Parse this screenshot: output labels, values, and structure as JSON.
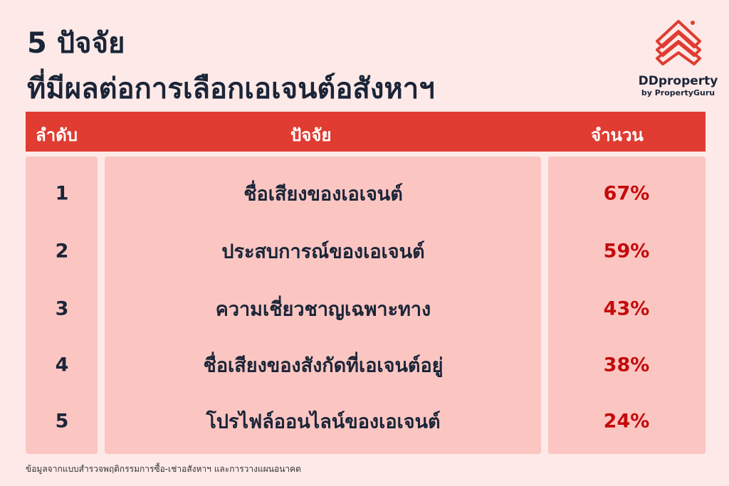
{
  "title": {
    "line1": "5 ปัจจัย",
    "line2": "ที่มีผลต่อการเลือกเอเจนต์อสังหาฯ"
  },
  "logo": {
    "brand": "DDproperty",
    "sub": "by PropertyGuru",
    "color": "#e03c31"
  },
  "colors": {
    "header": "#e03c31",
    "panel": "#fbc6c2",
    "background": "#fde9e7",
    "percent": "#c40a0a"
  },
  "table": {
    "headers": [
      "ลำดับ",
      "ปัจจัย",
      "จำนวน"
    ],
    "rows": [
      {
        "rank": "1",
        "factor": "ชื่อเสียงของเอเจนต์",
        "value": "67%"
      },
      {
        "rank": "2",
        "factor": "ประสบการณ์ของเอเจนต์",
        "value": "59%"
      },
      {
        "rank": "3",
        "factor": "ความเชี่ยวชาญเฉพาะทาง",
        "value": "43%"
      },
      {
        "rank": "4",
        "factor": "ชื่อเสียงของสังกัดที่เอเจนต์อยู่",
        "value": "38%"
      },
      {
        "rank": "5",
        "factor": "โปรไฟล์ออนไลน์ของเอเจนต์",
        "value": "24%"
      }
    ]
  },
  "footnote": "ข้อมูลจากแบบสำรวจพฤติกรรมการซื้อ-เช่าอสังหาฯ และการวางแผนอนาคต"
}
